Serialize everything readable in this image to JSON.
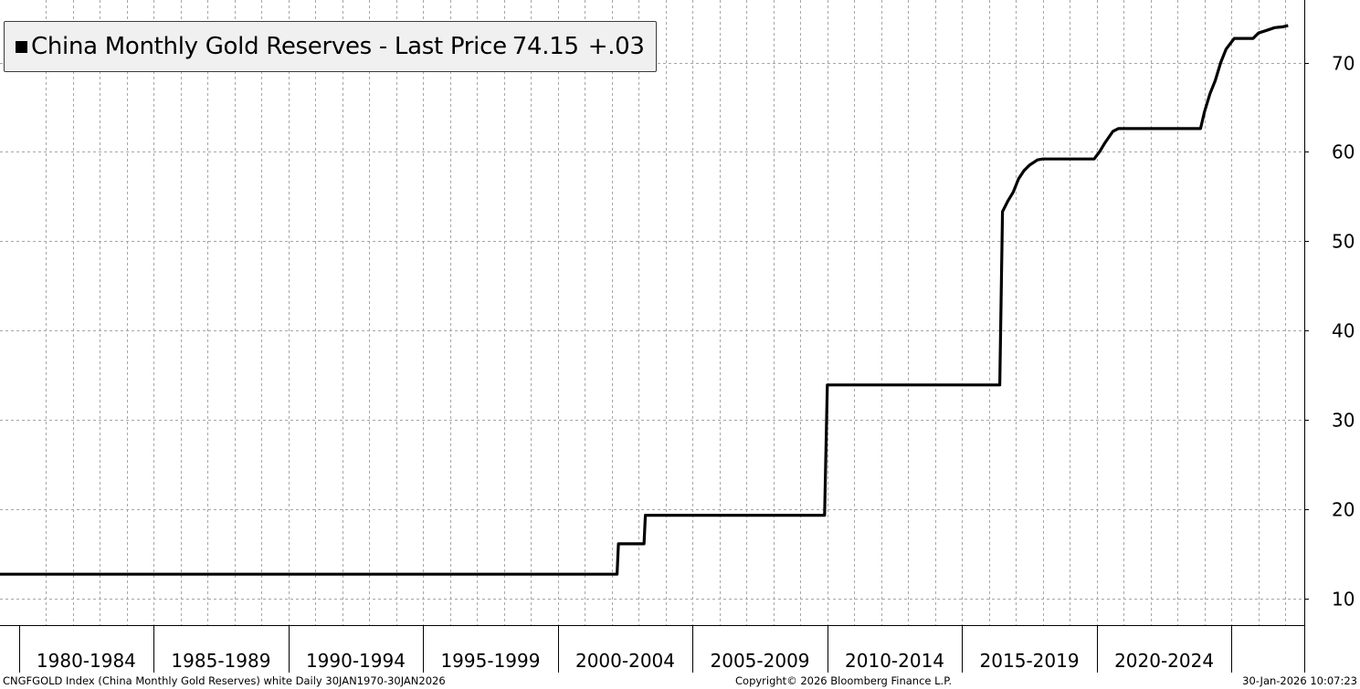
{
  "legend": {
    "label": "China Monthly Gold Reserves - Last Price",
    "value": "74.15",
    "change": "+.03"
  },
  "footer": {
    "left": "CNGFGOLD Index (China Monthly Gold Reserves) white Daily 30JAN1970-30JAN2026",
    "center": "Copyright© 2026 Bloomberg Finance L.P.",
    "right": "30-Jan-2026 10:07:23"
  },
  "colors": {
    "line": "#000000",
    "grid": "#a6a6a6",
    "legend_bg": "#f0f0f0"
  },
  "chart_data": {
    "type": "line",
    "title": "",
    "xlabel": "",
    "ylabel": "",
    "y_axis_side": "right",
    "ylim": [
      7,
      77
    ],
    "xlim": [
      1978.3,
      2026.7
    ],
    "y_ticks": [
      10,
      20,
      30,
      40,
      50,
      60,
      70
    ],
    "x_ticks": [
      {
        "label": "1980-1984",
        "start": 1979.0,
        "end": 1984.0
      },
      {
        "label": "1985-1989",
        "start": 1984.0,
        "end": 1989.0
      },
      {
        "label": "1990-1994",
        "start": 1989.0,
        "end": 1994.0
      },
      {
        "label": "1995-1999",
        "start": 1994.0,
        "end": 1999.0
      },
      {
        "label": "2000-2004",
        "start": 1999.0,
        "end": 2004.0
      },
      {
        "label": "2005-2009",
        "start": 2004.0,
        "end": 2009.0
      },
      {
        "label": "2010-2014",
        "start": 2009.0,
        "end": 2014.0
      },
      {
        "label": "2015-2019",
        "start": 2014.0,
        "end": 2019.0
      },
      {
        "label": "2020-2024",
        "start": 2019.0,
        "end": 2024.0
      }
    ],
    "x_gridlines": [
      1980,
      1981,
      1982,
      1983,
      1984,
      1985,
      1986,
      1987,
      1988,
      1989,
      1990,
      1991,
      1992,
      1993,
      1994,
      1995,
      1996,
      1997,
      1998,
      1999,
      2000,
      2001,
      2002,
      2003,
      2004,
      2005,
      2006,
      2007,
      2008,
      2009,
      2010,
      2011,
      2012,
      2013,
      2014,
      2015,
      2016,
      2017,
      2018,
      2019,
      2020,
      2021,
      2022,
      2023,
      2024,
      2025,
      2026
    ],
    "grid": true,
    "legend_position": "top-left",
    "series": [
      {
        "name": "China Monthly Gold Reserves",
        "x": [
          1978.3,
          1980.2,
          1980.25,
          2001.2,
          2001.25,
          2002.2,
          2002.25,
          2008.9,
          2009.0,
          2015.4,
          2015.5,
          2015.7,
          2015.9,
          2016.1,
          2016.3,
          2016.5,
          2016.8,
          2017.0,
          2017.5,
          2018.5,
          2018.9,
          2019.1,
          2019.3,
          2019.6,
          2019.8,
          2020.5,
          2021.5,
          2022.85,
          2023.0,
          2023.2,
          2023.4,
          2023.6,
          2023.8,
          2024.1,
          2024.5,
          2024.8,
          2025.0,
          2025.3,
          2025.6,
          2025.9,
          2026.1
        ],
        "y": [
          12.7,
          12.7,
          12.7,
          12.7,
          16.1,
          16.1,
          19.3,
          19.3,
          33.9,
          33.9,
          53.3,
          54.5,
          55.5,
          57.0,
          57.9,
          58.5,
          59.1,
          59.2,
          59.2,
          59.2,
          59.2,
          60.0,
          61.0,
          62.3,
          62.6,
          62.6,
          62.6,
          62.6,
          64.5,
          66.5,
          68.0,
          70.0,
          71.5,
          72.7,
          72.7,
          72.7,
          73.3,
          73.6,
          73.9,
          74.0,
          74.15
        ]
      }
    ]
  }
}
